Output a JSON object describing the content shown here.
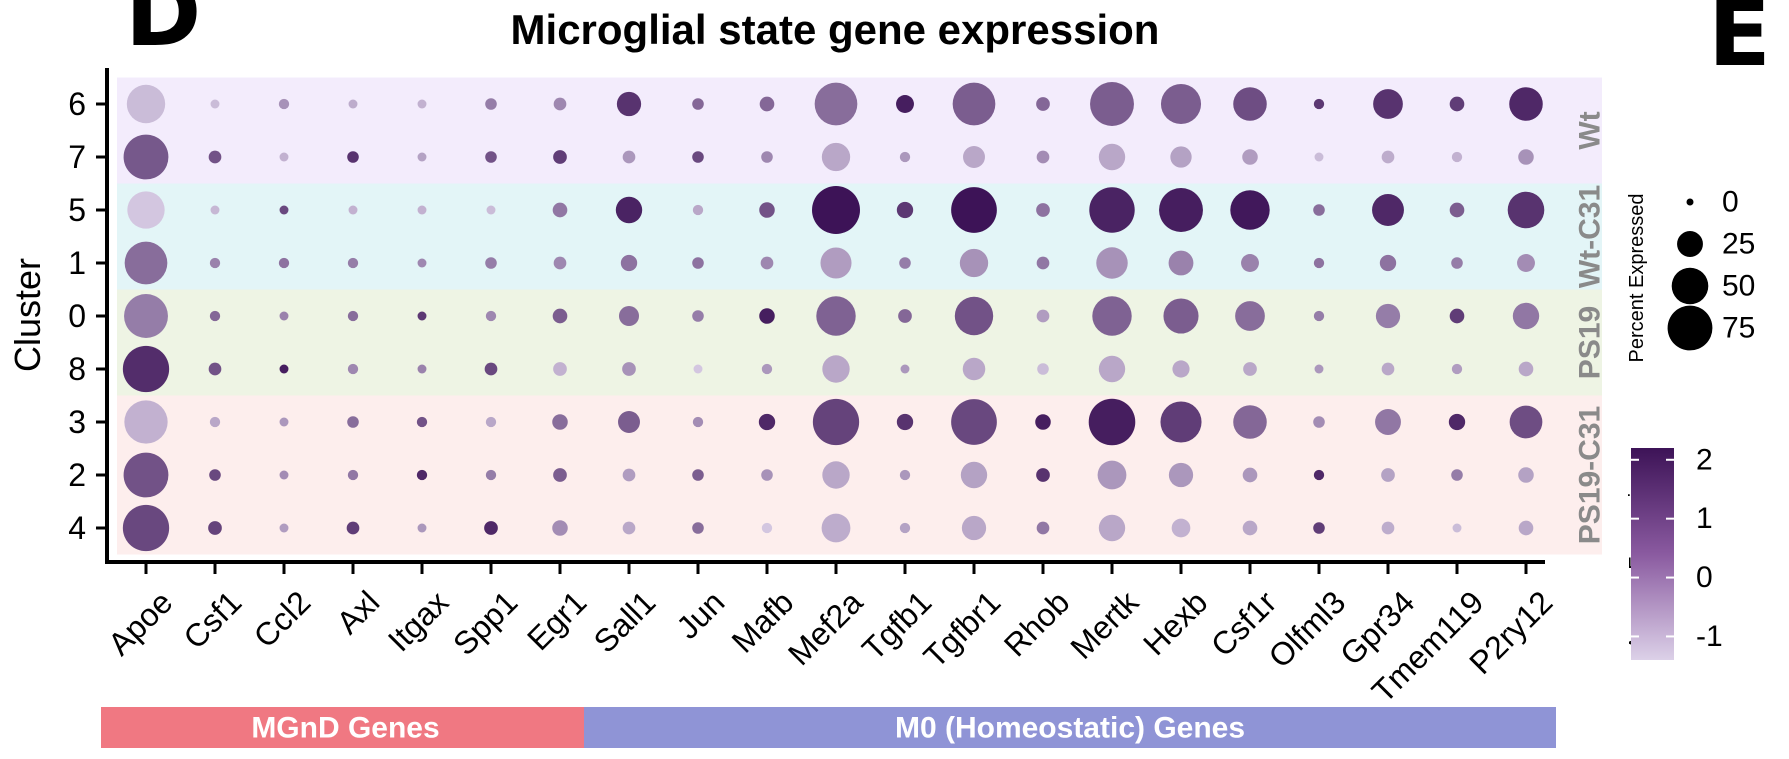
{
  "panel_letters": {
    "left": "D",
    "right": "E"
  },
  "chart_data": {
    "type": "dotplot",
    "title": "Microglial state gene expression",
    "ylabel": "Cluster",
    "genes": [
      "Apoe",
      "Csf1",
      "Ccl2",
      "Axl",
      "Itgax",
      "Spp1",
      "Egr1",
      "Sall1",
      "Jun",
      "Mafb",
      "Mef2a",
      "Tgfb1",
      "Tgfbr1",
      "Rhob",
      "Mertk",
      "Hexb",
      "Csf1r",
      "Olfml3",
      "Gpr34",
      "Tmem119",
      "P2ry12"
    ],
    "clusters": [
      "6",
      "7",
      "5",
      "1",
      "0",
      "8",
      "3",
      "2",
      "4"
    ],
    "groups": [
      {
        "label": "Wt",
        "clusters": [
          "6",
          "7"
        ],
        "color": "#f3ecfc"
      },
      {
        "label": "Wt-C31",
        "clusters": [
          "5",
          "1"
        ],
        "color": "#e3f5f7"
      },
      {
        "label": "PS19",
        "clusters": [
          "0",
          "8"
        ],
        "color": "#eef4e4"
      },
      {
        "label": "PS19-C31",
        "clusters": [
          "3",
          "2",
          "4"
        ],
        "color": "#fdeeed"
      }
    ],
    "gene_sets": [
      {
        "label": "MGnD Genes",
        "genes": [
          "Apoe",
          "Csf1",
          "Ccl2",
          "Axl",
          "Itgax",
          "Spp1",
          "Egr1"
        ],
        "color": "#f07882"
      },
      {
        "label": "M0 (Homeostatic) Genes",
        "genes": [
          "Sall1",
          "Jun",
          "Mafb",
          "Mef2a",
          "Tgfb1",
          "Tgfbr1",
          "Rhob",
          "Mertk",
          "Hexb",
          "Csf1r",
          "Olfml3",
          "Gpr34",
          "Tmem119",
          "P2ry12"
        ],
        "color": "#8f94d6"
      }
    ],
    "percent_expressed": [
      [
        55,
        3,
        4,
        3,
        3,
        5,
        6,
        22,
        5,
        8,
        68,
        12,
        68,
        7,
        72,
        60,
        42,
        4,
        33,
        8,
        42
      ],
      [
        75,
        6,
        3,
        5,
        3,
        5,
        7,
        6,
        5,
        5,
        30,
        4,
        18,
        6,
        26,
        17,
        9,
        3,
        6,
        4,
        9
      ],
      [
        52,
        3,
        3,
        3,
        3,
        3,
        8,
        26,
        4,
        9,
        86,
        10,
        78,
        7,
        77,
        72,
        58,
        5,
        38,
        8,
        50
      ],
      [
        68,
        4,
        4,
        4,
        3,
        5,
        6,
        10,
        5,
        6,
        36,
        5,
        30,
        6,
        37,
        23,
        12,
        4,
        10,
        5,
        12
      ],
      [
        72,
        4,
        3,
        4,
        3,
        4,
        8,
        15,
        5,
        9,
        58,
        7,
        55,
        6,
        58,
        46,
        33,
        4,
        22,
        8,
        26
      ],
      [
        80,
        6,
        3,
        4,
        3,
        6,
        7,
        7,
        3,
        4,
        28,
        3,
        19,
        5,
        26,
        11,
        7,
        3,
        6,
        4,
        8
      ],
      [
        70,
        4,
        3,
        5,
        4,
        4,
        9,
        18,
        4,
        10,
        80,
        10,
        78,
        9,
        81,
        63,
        42,
        5,
        25,
        10,
        40
      ],
      [
        75,
        5,
        3,
        4,
        4,
        4,
        7,
        6,
        5,
        5,
        28,
        4,
        26,
        7,
        31,
        22,
        8,
        4,
        7,
        5,
        9
      ],
      [
        80,
        7,
        3,
        6,
        3,
        7,
        9,
        6,
        5,
        4,
        31,
        4,
        22,
        6,
        26,
        13,
        8,
        5,
        6,
        3,
        8
      ]
    ],
    "average_expression": [
      [
        -1.0,
        -1.0,
        -0.2,
        -0.7,
        -0.8,
        0.2,
        0.0,
        1.6,
        0.6,
        0.6,
        0.5,
        2.0,
        0.8,
        0.6,
        0.8,
        0.8,
        1.1,
        1.5,
        1.6,
        1.4,
        1.8
      ],
      [
        0.9,
        1.0,
        -0.8,
        1.6,
        -0.5,
        1.0,
        1.4,
        -0.3,
        1.2,
        0.0,
        -0.6,
        -0.3,
        -0.6,
        -0.1,
        -0.6,
        -0.5,
        -0.4,
        -1.0,
        -0.7,
        -0.8,
        -0.2
      ],
      [
        -1.2,
        -0.9,
        1.2,
        -0.8,
        -0.8,
        -1.0,
        0.3,
        1.9,
        -0.6,
        1.0,
        2.2,
        1.5,
        2.2,
        0.4,
        1.9,
        2.0,
        2.1,
        0.5,
        1.8,
        0.8,
        1.6
      ],
      [
        0.5,
        0.1,
        0.4,
        0.2,
        0.0,
        0.2,
        0.0,
        0.4,
        0.4,
        0.0,
        -0.4,
        0.2,
        -0.2,
        0.3,
        -0.2,
        0.1,
        0.1,
        0.4,
        0.4,
        0.2,
        -0.1
      ],
      [
        0.2,
        0.6,
        0.1,
        0.5,
        1.5,
        0.0,
        0.8,
        0.5,
        0.2,
        2.0,
        0.7,
        0.6,
        1.0,
        -0.4,
        0.7,
        0.8,
        0.5,
        0.2,
        0.2,
        1.4,
        0.3
      ],
      [
        1.7,
        1.0,
        2.0,
        0.0,
        0.1,
        1.2,
        -0.8,
        -0.2,
        -1.2,
        -0.3,
        -0.6,
        -0.3,
        -0.6,
        -1.0,
        -0.6,
        -0.6,
        -0.6,
        -0.3,
        -0.6,
        -0.4,
        -0.6
      ],
      [
        -0.8,
        -0.6,
        -0.3,
        0.5,
        1.0,
        -0.6,
        0.5,
        0.8,
        -0.1,
        1.8,
        1.3,
        1.6,
        1.2,
        2.0,
        2.0,
        1.4,
        0.6,
        -0.1,
        0.3,
        1.8,
        1.1
      ],
      [
        1.0,
        1.2,
        -0.1,
        0.3,
        1.8,
        0.2,
        0.8,
        -0.4,
        0.8,
        -0.2,
        -0.6,
        -0.3,
        -0.5,
        1.6,
        -0.3,
        -0.3,
        -0.3,
        1.8,
        -0.5,
        0.2,
        -0.5
      ],
      [
        1.2,
        1.3,
        -0.4,
        1.4,
        -0.3,
        1.8,
        -0.1,
        -0.6,
        0.5,
        -1.2,
        -0.7,
        -0.5,
        -0.6,
        0.3,
        -0.6,
        -0.8,
        -0.6,
        1.4,
        -0.7,
        -1.0,
        -0.6
      ]
    ],
    "size_legend": {
      "title": "Percent Expressed",
      "breaks": [
        0,
        25,
        50,
        75
      ]
    },
    "color_legend": {
      "title": "Average Expression",
      "breaks": [
        2,
        1,
        0,
        -1
      ],
      "range": [
        -1.4,
        2.2
      ],
      "low_color": "#dcd1e8",
      "high_color": "#3d1357"
    }
  }
}
